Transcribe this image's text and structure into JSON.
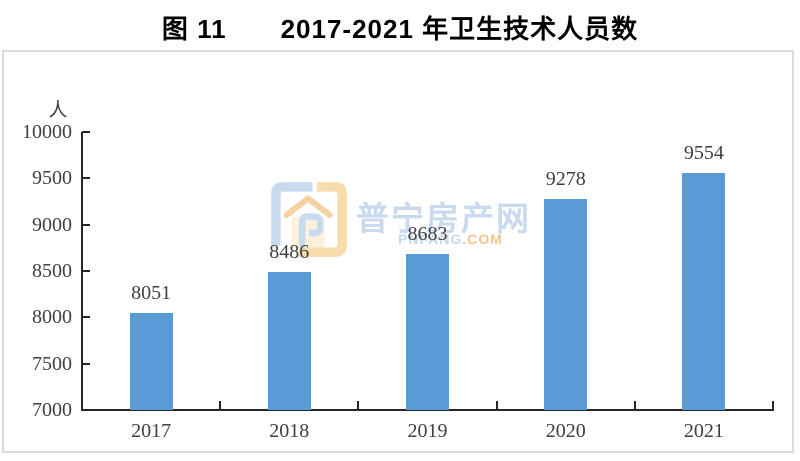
{
  "title": {
    "figure_label": "图 11",
    "text": "2017-2021 年卫生技术人员数"
  },
  "chart_data": {
    "type": "bar",
    "title": "图 11 2017-2021 年卫生技术人员数",
    "categories": [
      "2017",
      "2018",
      "2019",
      "2020",
      "2021"
    ],
    "values": [
      8051,
      8486,
      8683,
      9278,
      9554
    ],
    "unit_label": "人",
    "ylabel": "人",
    "ylim": [
      7000,
      10000
    ],
    "ytick_step": 500,
    "yticks": [
      7000,
      7500,
      8000,
      8500,
      9000,
      9500,
      10000
    ],
    "bar_color": "#5B9BD5",
    "value_labels_shown": true,
    "grid": false,
    "legend": "none"
  },
  "watermark": {
    "logo": "pnfang-house-logo",
    "name_cn": "普宁房产网",
    "domain_blue": "PNFANG",
    "domain_orange": ".COM",
    "colors": {
      "light_blue": "#c7daee",
      "light_orange": "#f8dcae",
      "house_body": "#fdf0dc",
      "dot_com_orange": "#f5c38b"
    }
  },
  "colors": {
    "bar": "#5B9BD5",
    "axis_line": "#262626",
    "label_text": "#404040",
    "title_text": "#000000",
    "frame_border": "#dcdcdc",
    "background": "#ffffff"
  }
}
